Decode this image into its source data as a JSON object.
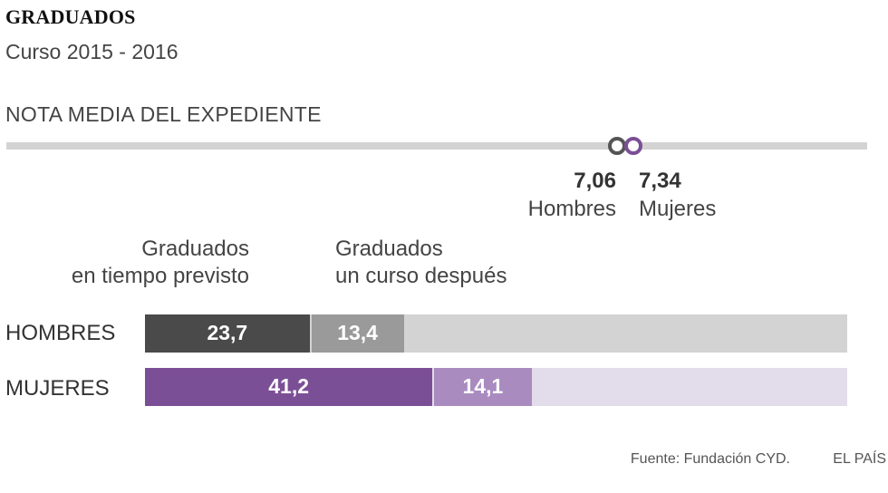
{
  "title": "GRADUADOS",
  "subtitle": "Curso 2015 - 2016",
  "nota_media": {
    "section_title": "NOTA MEDIA DEL EXPEDIENTE",
    "hombres": {
      "value": "7,06",
      "label": "Hombres",
      "color": "#555555"
    },
    "mujeres": {
      "value": "7,34",
      "label": "Mujeres",
      "color": "#7b4f96"
    }
  },
  "headers": {
    "tiempo_line1": "Graduados",
    "tiempo_line2": "en tiempo previsto",
    "despues_line1": "Graduados",
    "despues_line2": "un  curso después"
  },
  "rows": [
    {
      "label": "HOMBRES",
      "tiempo": "23,7",
      "despues": "13,4",
      "colors": {
        "tiempo": "#4a4a4a",
        "despues": "#9a9a9a",
        "rest": "#d3d3d3"
      }
    },
    {
      "label": "MUJERES",
      "tiempo": "41,2",
      "despues": "14,1",
      "colors": {
        "tiempo": "#7b4f96",
        "despues": "#a98bc0",
        "rest": "#e3dcea"
      }
    }
  ],
  "footer": {
    "source": "Fuente: Fundación CYD.",
    "brand": "EL PAÍS"
  },
  "chart_data": [
    {
      "type": "scatter",
      "title": "NOTA MEDIA DEL EXPEDIENTE",
      "series": [
        {
          "name": "Hombres",
          "values": [
            7.06
          ]
        },
        {
          "name": "Mujeres",
          "values": [
            7.34
          ]
        }
      ]
    },
    {
      "type": "bar",
      "stacked": true,
      "orientation": "horizontal",
      "categories": [
        "HOMBRES",
        "MUJERES"
      ],
      "series": [
        {
          "name": "Graduados en tiempo previsto",
          "values": [
            23.7,
            41.2
          ]
        },
        {
          "name": "Graduados un curso después",
          "values": [
            13.4,
            14.1
          ]
        }
      ],
      "xlim": [
        0,
        100
      ]
    }
  ]
}
